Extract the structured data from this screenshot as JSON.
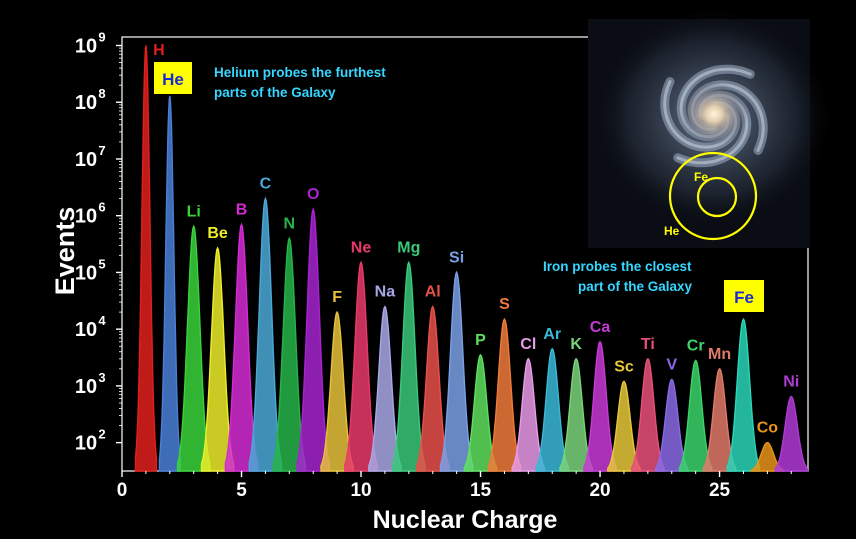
{
  "chart_data": {
    "type": "area",
    "title": "",
    "xlabel": "Nuclear Charge",
    "ylabel": "Events",
    "xlim": [
      0,
      28.7
    ],
    "ylim_log10": [
      1.5,
      9.15
    ],
    "x_ticks": [
      0,
      5,
      10,
      15,
      20,
      25
    ],
    "y_ticks": [
      {
        "label": "10",
        "exp": "2",
        "value": 100
      },
      {
        "label": "10",
        "exp": "3",
        "value": 1000
      },
      {
        "label": "10",
        "exp": "4",
        "value": 10000
      },
      {
        "label": "10",
        "exp": "5",
        "value": 100000
      },
      {
        "label": "10",
        "exp": "6",
        "value": 1000000
      },
      {
        "label": "10",
        "exp": "7",
        "value": 10000000
      },
      {
        "label": "10",
        "exp": "8",
        "value": 100000000
      },
      {
        "label": "10",
        "exp": "9",
        "value": 1000000000
      }
    ],
    "peaks": [
      {
        "symbol": "H",
        "z": 1,
        "events": 1000000000,
        "color": "#e0201c"
      },
      {
        "symbol": "He",
        "z": 2,
        "events": 130000000,
        "color": "#4a7fd6"
      },
      {
        "symbol": "Li",
        "z": 3,
        "events": 650000,
        "color": "#3ad33a"
      },
      {
        "symbol": "Be",
        "z": 4,
        "events": 270000,
        "color": "#eded2a"
      },
      {
        "symbol": "B",
        "z": 5,
        "events": 700000,
        "color": "#d42bd4"
      },
      {
        "symbol": "C",
        "z": 6,
        "events": 2000000,
        "color": "#4aa8d6"
      },
      {
        "symbol": "N",
        "z": 7,
        "events": 400000,
        "color": "#26b44a"
      },
      {
        "symbol": "O",
        "z": 8,
        "events": 1300000,
        "color": "#a624cf"
      },
      {
        "symbol": "F",
        "z": 9,
        "events": 20000,
        "color": "#e6c23a"
      },
      {
        "symbol": "Ne",
        "z": 10,
        "events": 150000,
        "color": "#e83a6a"
      },
      {
        "symbol": "Na",
        "z": 11,
        "events": 25000,
        "color": "#a8a8e6"
      },
      {
        "symbol": "Mg",
        "z": 12,
        "events": 150000,
        "color": "#3ac87a"
      },
      {
        "symbol": "Al",
        "z": 13,
        "events": 25000,
        "color": "#e8504a"
      },
      {
        "symbol": "Si",
        "z": 14,
        "events": 100000,
        "color": "#7aa0e6"
      },
      {
        "symbol": "P",
        "z": 15,
        "events": 3500,
        "color": "#5ee05e"
      },
      {
        "symbol": "S",
        "z": 16,
        "events": 15000,
        "color": "#f07a3a"
      },
      {
        "symbol": "Cl",
        "z": 17,
        "events": 3000,
        "color": "#e89ae8"
      },
      {
        "symbol": "Ar",
        "z": 18,
        "events": 4500,
        "color": "#3ab8d6"
      },
      {
        "symbol": "K",
        "z": 19,
        "events": 3000,
        "color": "#7ad47a"
      },
      {
        "symbol": "Ca",
        "z": 20,
        "events": 6000,
        "color": "#c83ad6"
      },
      {
        "symbol": "Sc",
        "z": 21,
        "events": 1200,
        "color": "#e6c83a"
      },
      {
        "symbol": "Ti",
        "z": 22,
        "events": 3000,
        "color": "#e8507a"
      },
      {
        "symbol": "V",
        "z": 23,
        "events": 1300,
        "color": "#8a6ae6"
      },
      {
        "symbol": "Cr",
        "z": 24,
        "events": 2800,
        "color": "#3ad46a"
      },
      {
        "symbol": "Mn",
        "z": 25,
        "events": 2000,
        "color": "#e07a6a"
      },
      {
        "symbol": "Fe",
        "z": 26,
        "events": 15000,
        "color": "#2ad6b8"
      },
      {
        "symbol": "Co",
        "z": 27,
        "events": 100,
        "color": "#e8941a"
      },
      {
        "symbol": "Ni",
        "z": 28,
        "events": 650,
        "color": "#b03ad6"
      }
    ],
    "annotations": {
      "helium": [
        "Helium probes the furthest",
        "parts of the Galaxy"
      ],
      "iron": [
        "Iron probes the closest",
        "part of the Galaxy"
      ],
      "he_box": "He",
      "fe_box": "Fe",
      "annotation_color": "#35d6ff",
      "box_color": "#ffff00"
    },
    "inset": {
      "labels": {
        "fe": "Fe",
        "he": "He"
      },
      "ring_color": "#ffff00"
    }
  }
}
